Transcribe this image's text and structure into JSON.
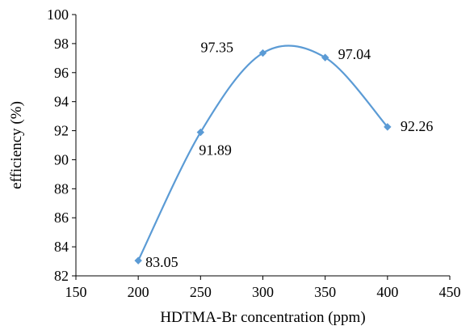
{
  "chart_data": {
    "type": "line",
    "xlabel": "HDTMA-Br concentration (ppm)",
    "ylabel": "efficiency (%)",
    "xlim": [
      150,
      450
    ],
    "ylim": [
      82,
      100
    ],
    "x_ticks": [
      150,
      200,
      250,
      300,
      350,
      400,
      450
    ],
    "y_ticks": [
      82,
      84,
      86,
      88,
      90,
      92,
      94,
      96,
      98,
      100
    ],
    "grid": false,
    "legend": "none",
    "smooth": true,
    "series": [
      {
        "x": [
          200,
          250,
          300,
          350,
          400
        ],
        "y": [
          83.05,
          91.89,
          97.35,
          97.04,
          92.26
        ],
        "labels": [
          "83.05",
          "91.89",
          "97.35",
          "97.04",
          "92.26"
        ],
        "marker": "diamond",
        "color": "#5b9bd5"
      }
    ]
  }
}
